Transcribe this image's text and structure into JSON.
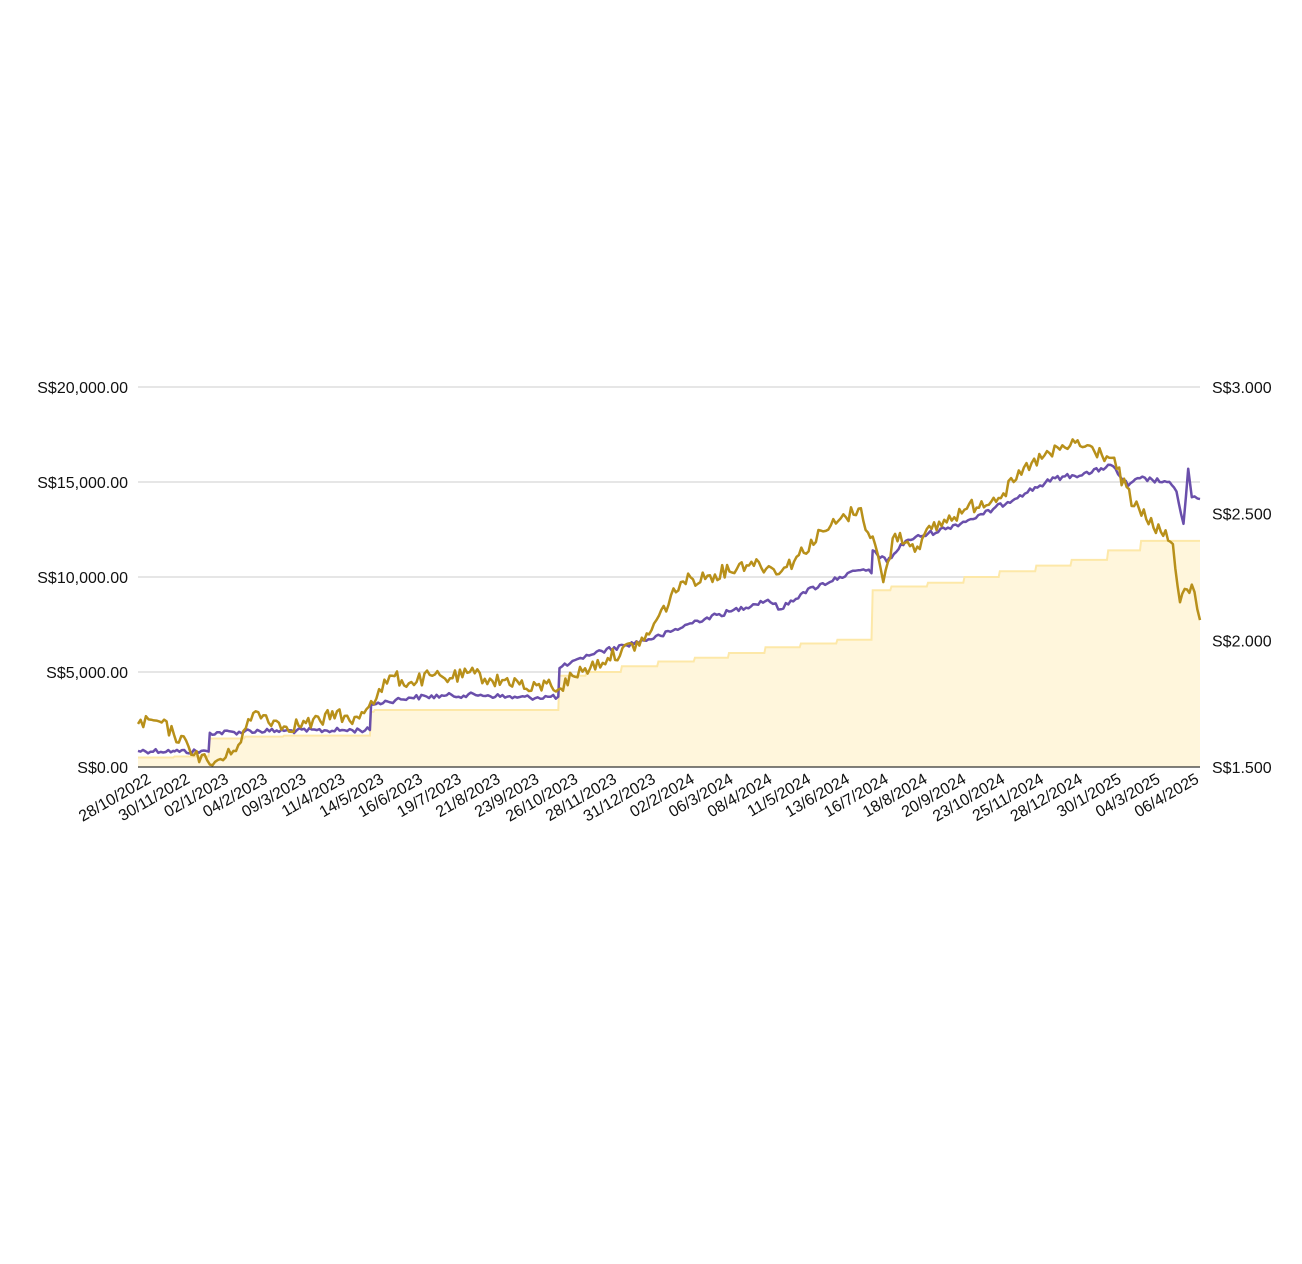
{
  "chart_data": {
    "type": "line",
    "title": "",
    "xlabel": "",
    "ylabel": "",
    "grid": true,
    "legend": "none",
    "x_tick_labels": [
      "28/10/2022",
      "30/11/2022",
      "02/1/2023",
      "04/2/2023",
      "09/3/2023",
      "11/4/2023",
      "14/5/2023",
      "16/6/2023",
      "19/7/2023",
      "21/8/2023",
      "23/9/2023",
      "26/10/2023",
      "28/11/2023",
      "31/12/2023",
      "02/2/2024",
      "06/3/2024",
      "08/4/2024",
      "11/5/2024",
      "13/6/2024",
      "16/7/2024",
      "18/8/2024",
      "20/9/2024",
      "23/10/2024",
      "25/11/2024",
      "28/12/2024",
      "30/1/2025",
      "04/3/2025",
      "06/4/2025"
    ],
    "x_range": [
      "28/10/2022",
      "17/4/2025"
    ],
    "y_left": {
      "range": [
        0,
        20000
      ],
      "tick_values": [
        0,
        5000,
        10000,
        15000,
        20000
      ],
      "tick_labels": [
        "S$0.00",
        "S$5,000.00",
        "S$10,000.00",
        "S$15,000.00",
        "S$20,000.00"
      ]
    },
    "y_right": {
      "range": [
        1.5,
        3.0
      ],
      "tick_values": [
        1.5,
        2.0,
        2.5,
        3.0
      ],
      "tick_labels": [
        "S$1.500",
        "S$2.000",
        "S$2.500",
        "S$3.000"
      ]
    },
    "series": [
      {
        "role": "invested (step area, left axis)",
        "style": "area",
        "axis": "left",
        "color": "#fde8a8",
        "fill": "#fff6dc",
        "points": [
          [
            "28/10/2022",
            500
          ],
          [
            "27/11/2022",
            500
          ],
          [
            "28/11/2022",
            550
          ],
          [
            "27/12/2022",
            550
          ],
          [
            "28/12/2022",
            1500
          ],
          [
            "26/1/2023",
            1500
          ],
          [
            "27/1/2023",
            1600
          ],
          [
            "28/2/2023",
            1600
          ],
          [
            "01/3/2023",
            1650
          ],
          [
            "13/5/2023",
            1650
          ],
          [
            "14/5/2023",
            2900
          ],
          [
            "16/5/2023",
            2900
          ],
          [
            "17/5/2023",
            3000
          ],
          [
            "20/10/2023",
            3000
          ],
          [
            "21/10/2023",
            4800
          ],
          [
            "12/11/2023",
            4800
          ],
          [
            "13/11/2023",
            5000
          ],
          [
            "12/12/2023",
            5000
          ],
          [
            "13/12/2023",
            5300
          ],
          [
            "12/1/2024",
            5300
          ],
          [
            "13/1/2024",
            5550
          ],
          [
            "12/2/2024",
            5550
          ],
          [
            "13/2/2024",
            5750
          ],
          [
            "12/3/2024",
            5750
          ],
          [
            "13/3/2024",
            6000
          ],
          [
            "12/4/2024",
            6000
          ],
          [
            "13/4/2024",
            6300
          ],
          [
            "12/5/2024",
            6300
          ],
          [
            "13/5/2024",
            6500
          ],
          [
            "12/6/2024",
            6500
          ],
          [
            "13/6/2024",
            6700
          ],
          [
            "12/7/2024",
            6700
          ],
          [
            "13/7/2024",
            9300
          ],
          [
            "28/7/2024",
            9300
          ],
          [
            "29/7/2024",
            9500
          ],
          [
            "28/8/2024",
            9500
          ],
          [
            "29/8/2024",
            9700
          ],
          [
            "28/9/2024",
            9700
          ],
          [
            "29/9/2024",
            10000
          ],
          [
            "28/10/2024",
            10000
          ],
          [
            "29/10/2024",
            10300
          ],
          [
            "28/11/2024",
            10300
          ],
          [
            "29/11/2024",
            10600
          ],
          [
            "28/12/2024",
            10600
          ],
          [
            "29/12/2024",
            10900
          ],
          [
            "28/1/2025",
            10900
          ],
          [
            "29/1/2025",
            11400
          ],
          [
            "25/2/2025",
            11400
          ],
          [
            "26/2/2025",
            11900
          ],
          [
            "17/4/2025",
            11900
          ]
        ]
      },
      {
        "role": "portfolio value (left axis)",
        "style": "line",
        "axis": "left",
        "color": "#6a4fab",
        "points": [
          [
            "28/10/2022",
            850
          ],
          [
            "27/11/2022",
            850
          ],
          [
            "28/11/2022",
            820
          ],
          [
            "27/12/2022",
            810
          ],
          [
            "28/12/2022",
            1800
          ],
          [
            "26/1/2023",
            1850
          ],
          [
            "27/1/2023",
            1900
          ],
          [
            "01/3/2023",
            1900
          ],
          [
            "13/5/2023",
            1950
          ],
          [
            "14/5/2023",
            3300
          ],
          [
            "28/5/2023",
            3450
          ],
          [
            "15/6/2023",
            3650
          ],
          [
            "15/7/2023",
            3750
          ],
          [
            "15/8/2023",
            3800
          ],
          [
            "15/9/2023",
            3650
          ],
          [
            "20/10/2023",
            3700
          ],
          [
            "21/10/2023",
            5200
          ],
          [
            "10/11/2023",
            5700
          ],
          [
            "13/11/2023",
            5900
          ],
          [
            "15/12/2023",
            6400
          ],
          [
            "15/1/2024",
            6900
          ],
          [
            "15/2/2024",
            7700
          ],
          [
            "15/3/2024",
            8200
          ],
          [
            "15/4/2024",
            8800
          ],
          [
            "26/4/2024",
            8300
          ],
          [
            "15/5/2024",
            9200
          ],
          [
            "15/6/2024",
            10000
          ],
          [
            "05/7/2024",
            10400
          ],
          [
            "12/7/2024",
            10200
          ],
          [
            "13/7/2024",
            11400
          ],
          [
            "25/7/2024",
            10800
          ],
          [
            "10/8/2024",
            11900
          ],
          [
            "15/9/2024",
            12600
          ],
          [
            "15/10/2024",
            13300
          ],
          [
            "15/11/2024",
            14300
          ],
          [
            "15/12/2024",
            15200
          ],
          [
            "15/1/2025",
            15500
          ],
          [
            "31/1/2025",
            15900
          ],
          [
            "15/2/2025",
            14800
          ],
          [
            "25/2/2025",
            15200
          ],
          [
            "20/3/2025",
            15000
          ],
          [
            "28/3/2025",
            14500
          ],
          [
            "03/4/2025",
            12800
          ],
          [
            "07/4/2025",
            15700
          ],
          [
            "10/4/2025",
            14200
          ],
          [
            "17/4/2025",
            14100
          ]
        ]
      },
      {
        "role": "unit price (right axis)",
        "style": "line",
        "axis": "right",
        "color": "#b8901a",
        "points": [
          [
            "28/10/2022",
            1.67
          ],
          [
            "15/11/2022",
            1.68
          ],
          [
            "10/12/2022",
            1.58
          ],
          [
            "28/12/2022",
            1.51
          ],
          [
            "15/1/2023",
            1.55
          ],
          [
            "05/2/2023",
            1.72
          ],
          [
            "01/3/2023",
            1.66
          ],
          [
            "01/4/2023",
            1.68
          ],
          [
            "15/4/2023",
            1.72
          ],
          [
            "28/4/2023",
            1.67
          ],
          [
            "14/5/2023",
            1.76
          ],
          [
            "01/6/2023",
            1.86
          ],
          [
            "15/6/2023",
            1.83
          ],
          [
            "05/7/2023",
            1.86
          ],
          [
            "20/7/2023",
            1.85
          ],
          [
            "10/8/2023",
            1.87
          ],
          [
            "25/8/2023",
            1.84
          ],
          [
            "15/9/2023",
            1.84
          ],
          [
            "25/9/2023",
            1.8
          ],
          [
            "10/10/2023",
            1.83
          ],
          [
            "22/10/2023",
            1.81
          ],
          [
            "01/11/2023",
            1.86
          ],
          [
            "01/12/2023",
            1.93
          ],
          [
            "01/1/2024",
            2.0
          ],
          [
            "01/2/2024",
            2.23
          ],
          [
            "01/3/2024",
            2.26
          ],
          [
            "01/4/2024",
            2.31
          ],
          [
            "20/4/2024",
            2.28
          ],
          [
            "01/5/2024",
            2.29
          ],
          [
            "01/6/2024",
            2.43
          ],
          [
            "01/7/2024",
            2.52
          ],
          [
            "15/7/2024",
            2.38
          ],
          [
            "22/7/2024",
            2.23
          ],
          [
            "01/8/2024",
            2.42
          ],
          [
            "20/8/2024",
            2.37
          ],
          [
            "01/9/2024",
            2.44
          ],
          [
            "01/10/2024",
            2.52
          ],
          [
            "01/11/2024",
            2.58
          ],
          [
            "25/11/2024",
            2.7
          ],
          [
            "01/1/2025",
            2.78
          ],
          [
            "01/2/2025",
            2.72
          ],
          [
            "20/2/2025",
            2.53
          ],
          [
            "25/3/2025",
            2.38
          ],
          [
            "31/3/2025",
            2.15
          ],
          [
            "10/4/2025",
            2.22
          ],
          [
            "17/4/2025",
            2.08
          ]
        ]
      }
    ]
  }
}
